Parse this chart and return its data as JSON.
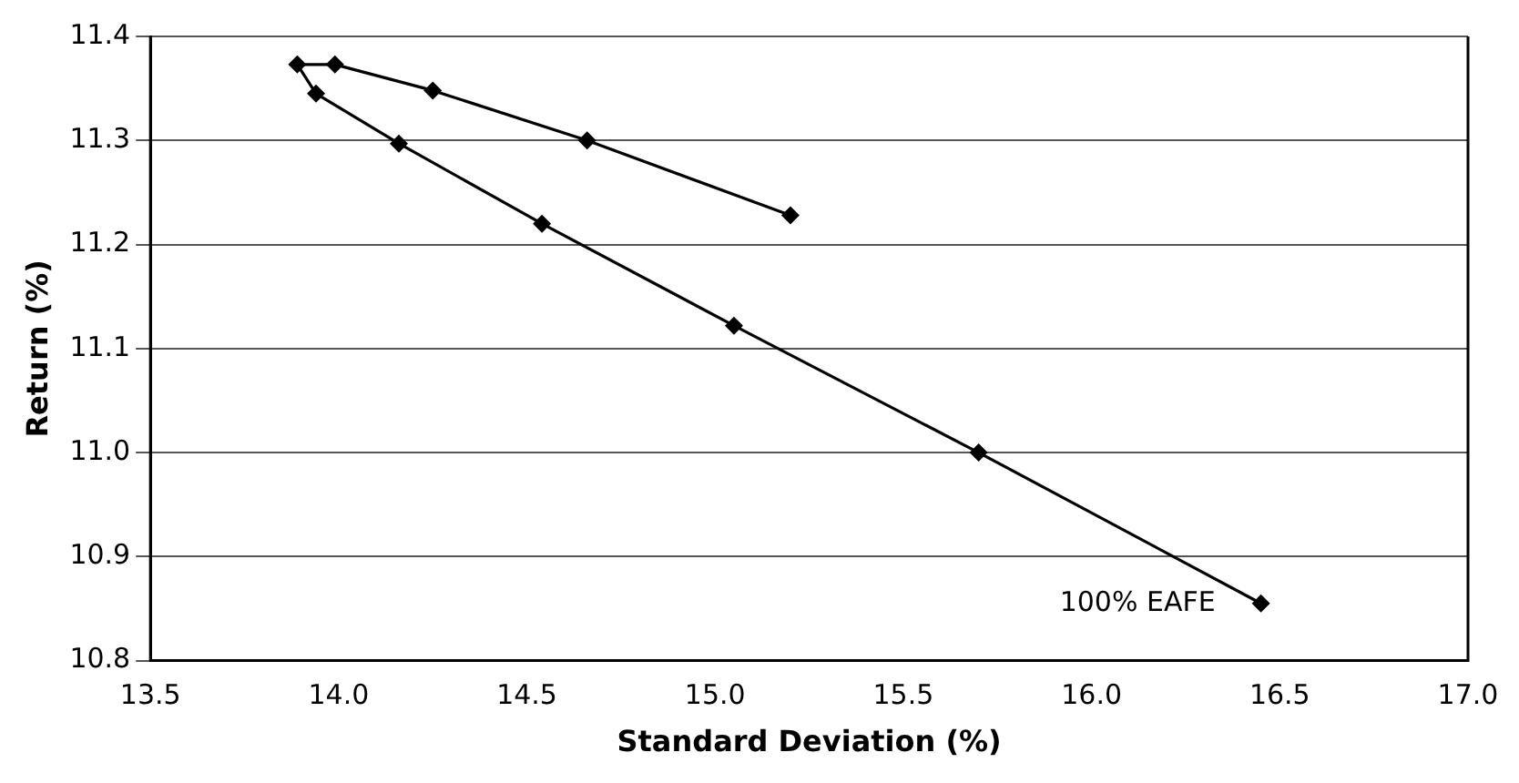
{
  "chart_data": {
    "type": "line",
    "xlabel": "Standard Deviation (%)",
    "ylabel": "Return (%)",
    "series": [
      {
        "color": "#000000",
        "x": [
          15.2,
          14.66,
          14.25,
          13.99,
          13.89,
          13.94,
          14.16,
          14.54,
          15.05,
          15.7,
          16.45
        ],
        "values": [
          11.228,
          11.3,
          11.348,
          11.373,
          11.373,
          11.345,
          11.297,
          11.22,
          11.122,
          11.0,
          10.855
        ]
      }
    ],
    "xlim": [
      13.5,
      17.0
    ],
    "xticks": [
      {
        "value": 13.5,
        "label": "13.5"
      },
      {
        "value": 14,
        "label": "14.0"
      },
      {
        "value": 14.5,
        "label": "14.5"
      },
      {
        "value": 15,
        "label": "15.0"
      },
      {
        "value": 15.5,
        "label": "15.5"
      },
      {
        "value": 16,
        "label": "16.0"
      },
      {
        "value": 16.5,
        "label": "16.5"
      },
      {
        "value": 17,
        "label": "17.0"
      }
    ],
    "ylim": [
      10.8,
      11.4
    ],
    "yticks": [
      10.8,
      10.9,
      {
        "value": 11,
        "label": "11.0"
      },
      11.1,
      11.2,
      11.3,
      11.4
    ],
    "grid": "y",
    "legend": false,
    "marker": "diamond",
    "line_style": "solid",
    "annotations": [
      {
        "text": "100% EAFE",
        "x": 16.45,
        "y": 10.855
      }
    ]
  }
}
